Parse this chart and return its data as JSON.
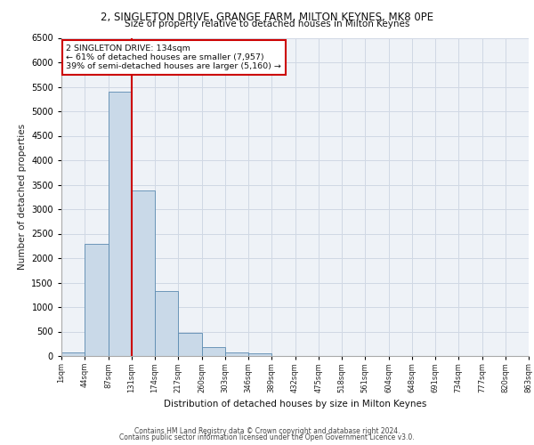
{
  "title1": "2, SINGLETON DRIVE, GRANGE FARM, MILTON KEYNES, MK8 0PE",
  "title2": "Size of property relative to detached houses in Milton Keynes",
  "xlabel": "Distribution of detached houses by size in Milton Keynes",
  "ylabel": "Number of detached properties",
  "footer1": "Contains HM Land Registry data © Crown copyright and database right 2024.",
  "footer2": "Contains public sector information licensed under the Open Government Licence v3.0.",
  "annotation_line1": "2 SINGLETON DRIVE: 134sqm",
  "annotation_line2": "← 61% of detached houses are smaller (7,957)",
  "annotation_line3": "39% of semi-detached houses are larger (5,160) →",
  "bar_values": [
    70,
    2300,
    5400,
    3380,
    1320,
    480,
    190,
    80,
    50,
    0,
    0,
    0,
    0,
    0,
    0,
    0,
    0,
    0,
    0,
    0
  ],
  "categories": [
    "1sqm",
    "44sqm",
    "87sqm",
    "131sqm",
    "174sqm",
    "217sqm",
    "260sqm",
    "303sqm",
    "346sqm",
    "389sqm",
    "432sqm",
    "475sqm",
    "518sqm",
    "561sqm",
    "604sqm",
    "648sqm",
    "691sqm",
    "734sqm",
    "777sqm",
    "820sqm",
    "863sqm"
  ],
  "bar_color": "#c9d9e8",
  "bar_edge_color": "#5a8ab0",
  "vline_x": 3,
  "vline_color": "#cc0000",
  "ylim": [
    0,
    6500
  ],
  "yticks": [
    0,
    500,
    1000,
    1500,
    2000,
    2500,
    3000,
    3500,
    4000,
    4500,
    5000,
    5500,
    6000,
    6500
  ],
  "annotation_box_color": "#cc0000",
  "grid_color": "#d0d8e4",
  "bg_color": "#eef2f7"
}
